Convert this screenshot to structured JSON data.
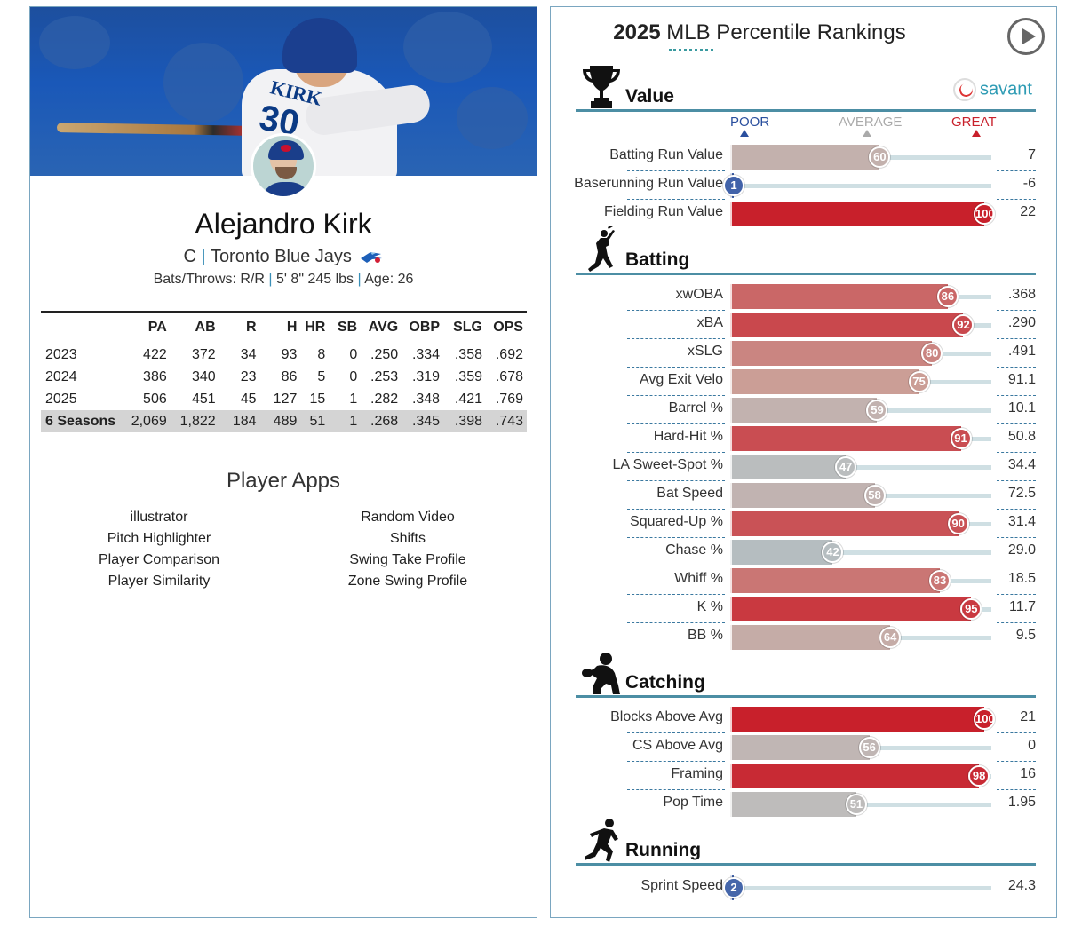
{
  "player": {
    "name": "Alejandro Kirk",
    "position": "C",
    "team": "Toronto Blue Jays",
    "jersey_name": "KIRK",
    "jersey_number": "30",
    "bats_throws": "Bats/Throws: R/R",
    "height_weight": "5' 8\" 245 lbs",
    "age": "Age: 26"
  },
  "stats": {
    "headers": [
      "",
      "PA",
      "AB",
      "R",
      "H",
      "HR",
      "SB",
      "AVG",
      "OBP",
      "SLG",
      "OPS"
    ],
    "rows": [
      [
        "2023",
        "422",
        "372",
        "34",
        "93",
        "8",
        "0",
        ".250",
        ".334",
        ".358",
        ".692"
      ],
      [
        "2024",
        "386",
        "340",
        "23",
        "86",
        "5",
        "0",
        ".253",
        ".319",
        ".359",
        ".678"
      ],
      [
        "2025",
        "506",
        "451",
        "45",
        "127",
        "15",
        "1",
        ".282",
        ".348",
        ".421",
        ".769"
      ],
      [
        "6 Seasons",
        "2,069",
        "1,822",
        "184",
        "489",
        "51",
        "1",
        ".268",
        ".345",
        ".398",
        ".743"
      ]
    ]
  },
  "apps": {
    "title": "Player Apps",
    "left": [
      "illustrator",
      "Pitch Highlighter",
      "Player Comparison",
      "Player Similarity"
    ],
    "right": [
      "Random Video",
      "Shifts",
      "Swing Take Profile",
      "Zone Swing Profile"
    ]
  },
  "rankings": {
    "title_year": "2025",
    "title_rest": " MLB Percentile Rankings",
    "brand": "savant",
    "scale": {
      "poor": "POOR",
      "average": "AVERAGE",
      "great": "GREAT"
    },
    "sections": [
      {
        "title": "Value",
        "icon": "trophy-icon",
        "metrics": [
          {
            "label": "Batting Run Value",
            "percentile": 60,
            "value": "7"
          },
          {
            "label": "Baserunning Run Value",
            "percentile": 1,
            "value": "-6"
          },
          {
            "label": "Fielding Run Value",
            "percentile": 100,
            "value": "22"
          }
        ]
      },
      {
        "title": "Batting",
        "icon": "batter-icon",
        "metrics": [
          {
            "label": "xwOBA",
            "percentile": 86,
            "value": ".368"
          },
          {
            "label": "xBA",
            "percentile": 92,
            "value": ".290"
          },
          {
            "label": "xSLG",
            "percentile": 80,
            "value": ".491"
          },
          {
            "label": "Avg Exit Velo",
            "percentile": 75,
            "value": "91.1"
          },
          {
            "label": "Barrel %",
            "percentile": 59,
            "value": "10.1"
          },
          {
            "label": "Hard-Hit %",
            "percentile": 91,
            "value": "50.8"
          },
          {
            "label": "LA Sweet-Spot %",
            "percentile": 47,
            "value": "34.4"
          },
          {
            "label": "Bat Speed",
            "percentile": 58,
            "value": "72.5"
          },
          {
            "label": "Squared-Up %",
            "percentile": 90,
            "value": "31.4"
          },
          {
            "label": "Chase %",
            "percentile": 42,
            "value": "29.0"
          },
          {
            "label": "Whiff %",
            "percentile": 83,
            "value": "18.5"
          },
          {
            "label": "K %",
            "percentile": 95,
            "value": "11.7"
          },
          {
            "label": "BB %",
            "percentile": 64,
            "value": "9.5"
          }
        ]
      },
      {
        "title": "Catching",
        "icon": "catcher-icon",
        "metrics": [
          {
            "label": "Blocks Above Avg",
            "percentile": 100,
            "value": "21"
          },
          {
            "label": "CS Above Avg",
            "percentile": 56,
            "value": "0"
          },
          {
            "label": "Framing",
            "percentile": 98,
            "value": "16"
          },
          {
            "label": "Pop Time",
            "percentile": 51,
            "value": "1.95"
          }
        ]
      },
      {
        "title": "Running",
        "icon": "runner-icon",
        "metrics": [
          {
            "label": "Sprint Speed",
            "percentile": 2,
            "value": "24.3"
          }
        ]
      }
    ]
  },
  "colors": {
    "accent": "#4c8ea4",
    "poor": "#3d5ea8",
    "average": "#bdbdbd",
    "great": "#c8202b"
  }
}
